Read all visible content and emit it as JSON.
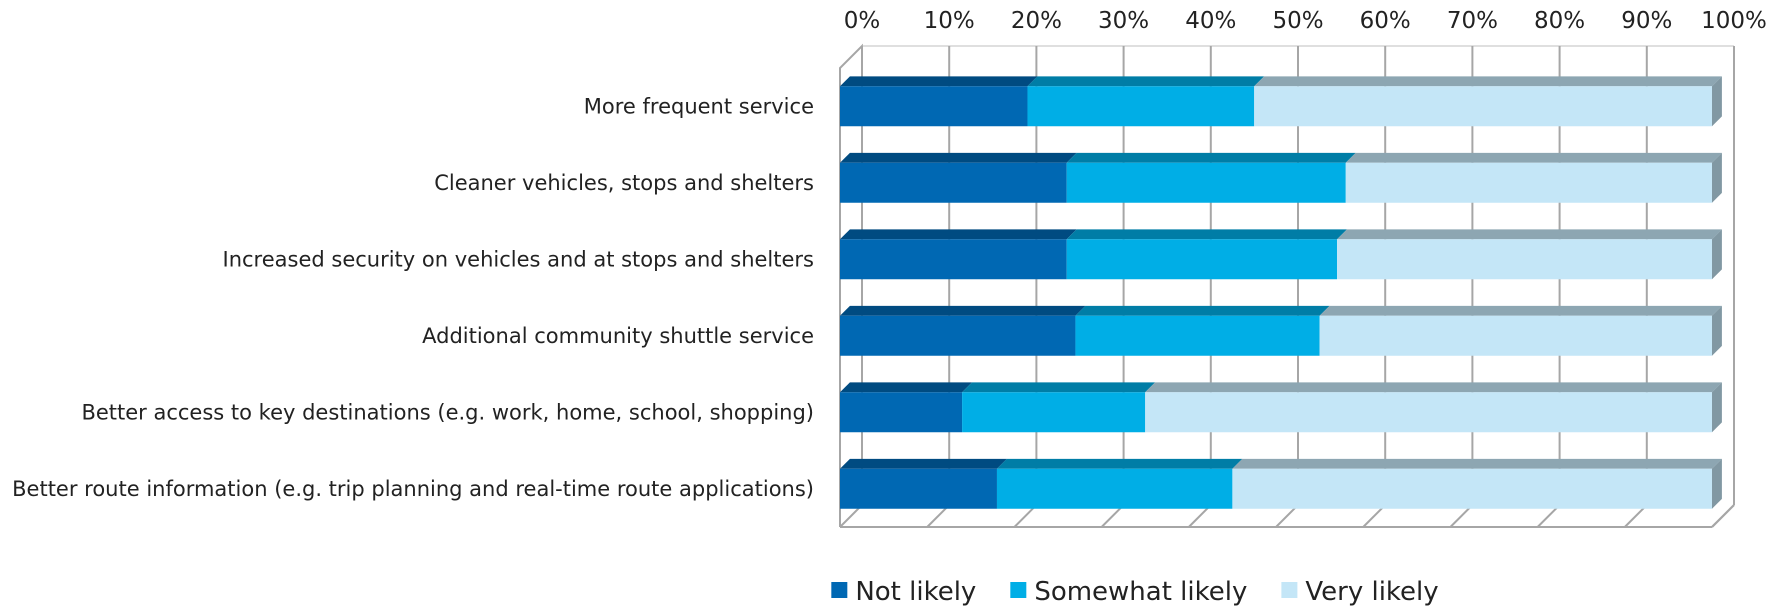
{
  "chart_data": {
    "type": "bar",
    "orientation": "horizontal",
    "stacked": "percent",
    "style": "3d",
    "categories": [
      "More frequent service",
      "Cleaner vehicles, stops and shelters",
      "Increased security on vehicles and at stops and shelters",
      "Additional community shuttle service",
      "Better access to key destinations (e.g. work, home, school, shopping)",
      "Better route information (e.g. trip planning and real-time route applications)"
    ],
    "series": [
      {
        "name": "Not likely",
        "color": "#0068B3",
        "values": [
          21.5,
          26,
          26,
          27,
          14,
          18
        ]
      },
      {
        "name": "Somewhat likely",
        "color": "#00AEE6",
        "values": [
          26,
          32,
          31,
          28,
          21,
          27
        ]
      },
      {
        "name": "Very likely",
        "color": "#C4E6F7",
        "values": [
          52.5,
          42,
          43,
          45,
          65,
          55
        ]
      }
    ],
    "xlim": [
      0,
      100
    ],
    "x_ticks": [
      "0%",
      "10%",
      "20%",
      "30%",
      "40%",
      "50%",
      "60%",
      "70%",
      "80%",
      "90%",
      "100%"
    ],
    "axis_position": "top",
    "grid": true,
    "legend_position": "bottom",
    "title": "",
    "xlabel": "",
    "ylabel": ""
  }
}
